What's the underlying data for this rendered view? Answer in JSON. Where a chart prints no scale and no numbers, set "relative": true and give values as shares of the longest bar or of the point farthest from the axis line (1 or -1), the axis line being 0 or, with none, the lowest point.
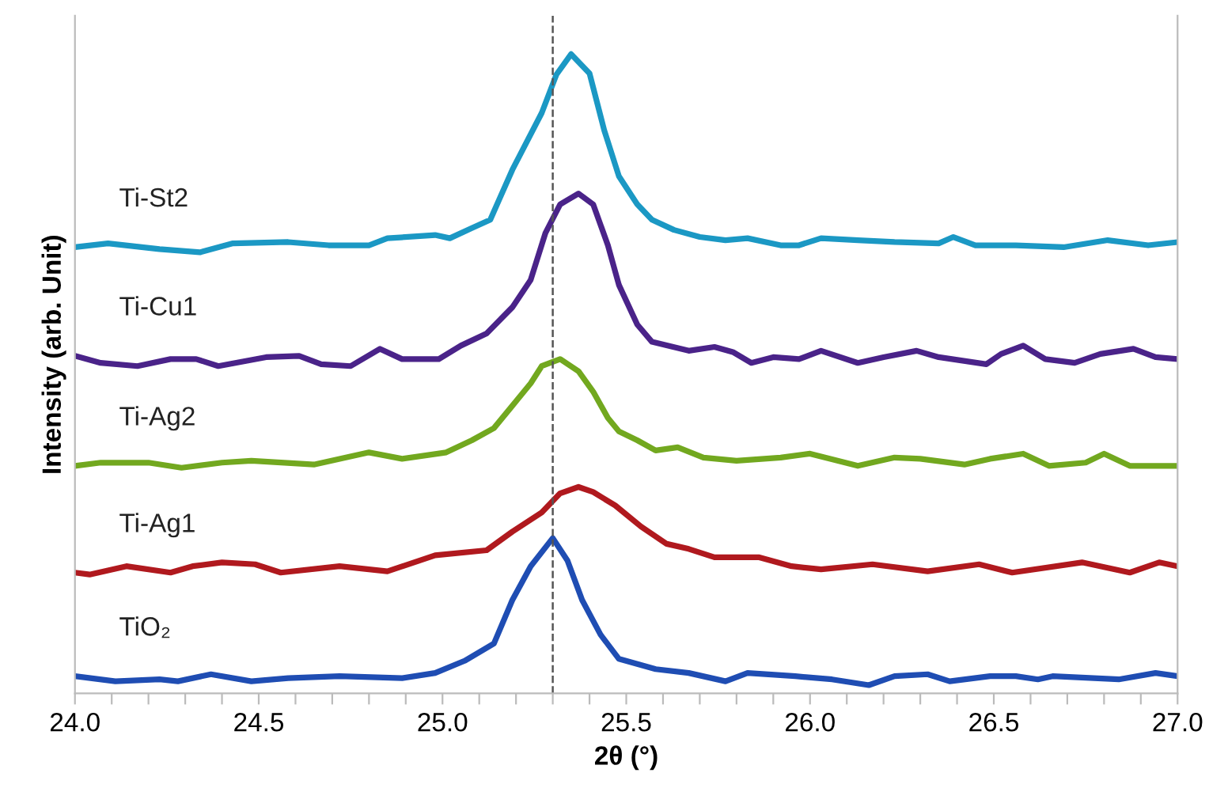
{
  "chart_data": {
    "type": "line",
    "relative": true,
    "xlabel": "2θ (°)",
    "ylabel": "Intensity (arb. Unit)",
    "xlim": [
      24.0,
      27.0
    ],
    "xticks": [
      {
        "value": 24.0,
        "label": "24.0"
      },
      {
        "value": 24.1,
        "label": null
      },
      {
        "value": 24.2,
        "label": null
      },
      {
        "value": 24.3,
        "label": null
      },
      {
        "value": 24.4,
        "label": null
      },
      {
        "value": 24.5,
        "label": "24.5"
      },
      {
        "value": 24.6,
        "label": null
      },
      {
        "value": 24.7,
        "label": null
      },
      {
        "value": 24.8,
        "label": null
      },
      {
        "value": 24.9,
        "label": null
      },
      {
        "value": 25.0,
        "label": "25.0"
      },
      {
        "value": 25.1,
        "label": null
      },
      {
        "value": 25.2,
        "label": null
      },
      {
        "value": 25.3,
        "label": null
      },
      {
        "value": 25.4,
        "label": null
      },
      {
        "value": 25.5,
        "label": "25.5"
      },
      {
        "value": 25.6,
        "label": null
      },
      {
        "value": 25.7,
        "label": null
      },
      {
        "value": 25.8,
        "label": null
      },
      {
        "value": 25.9,
        "label": null
      },
      {
        "value": 26.0,
        "label": "26.0"
      },
      {
        "value": 26.1,
        "label": null
      },
      {
        "value": 26.2,
        "label": null
      },
      {
        "value": 26.3,
        "label": null
      },
      {
        "value": 26.4,
        "label": null
      },
      {
        "value": 26.5,
        "label": "26.5"
      },
      {
        "value": 26.6,
        "label": null
      },
      {
        "value": 26.7,
        "label": null
      },
      {
        "value": 26.8,
        "label": null
      },
      {
        "value": 26.9,
        "label": null
      },
      {
        "value": 27.0,
        "label": "27.0"
      }
    ],
    "tick_labels": "x",
    "grid": false,
    "legend": false,
    "marker": "none",
    "line_style": "solid",
    "ref_lines": [
      {
        "axis": "x",
        "value": 25.3,
        "label": null,
        "color": "#555555",
        "line_style": "dashed"
      }
    ],
    "series": [
      {
        "name": "Ti-St2",
        "color": "#1b98c4",
        "x": [
          24.0,
          24.09,
          24.23,
          24.34,
          24.43,
          24.58,
          24.69,
          24.8,
          24.85,
          24.98,
          25.02,
          25.08,
          25.13,
          25.19,
          25.27,
          25.31,
          25.35,
          25.4,
          25.44,
          25.48,
          25.53,
          25.57,
          25.63,
          25.7,
          25.77,
          25.83,
          25.92,
          25.97,
          26.03,
          26.13,
          26.23,
          26.35,
          26.39,
          26.45,
          26.56,
          26.69,
          26.81,
          26.92,
          27.0
        ],
        "values": [
          0.698,
          0.704,
          0.695,
          0.69,
          0.704,
          0.706,
          0.701,
          0.701,
          0.712,
          0.717,
          0.712,
          0.728,
          0.741,
          0.819,
          0.908,
          0.968,
          1.0,
          0.97,
          0.881,
          0.809,
          0.765,
          0.741,
          0.725,
          0.714,
          0.709,
          0.712,
          0.701,
          0.701,
          0.712,
          0.709,
          0.706,
          0.704,
          0.714,
          0.701,
          0.701,
          0.698,
          0.709,
          0.701,
          0.706
        ]
      },
      {
        "name": "Ti-Cu1",
        "color": "#4a2389",
        "x": [
          24.0,
          24.07,
          24.17,
          24.26,
          24.33,
          24.39,
          24.52,
          24.61,
          24.67,
          24.75,
          24.83,
          24.89,
          24.99,
          25.05,
          25.12,
          25.19,
          25.24,
          25.28,
          25.32,
          25.37,
          25.41,
          25.45,
          25.48,
          25.53,
          25.57,
          25.67,
          25.74,
          25.79,
          25.84,
          25.9,
          25.97,
          26.03,
          26.13,
          26.2,
          26.29,
          26.35,
          26.48,
          26.52,
          26.58,
          26.64,
          26.72,
          26.79,
          26.88,
          26.94,
          27.0
        ],
        "values": [
          0.528,
          0.517,
          0.512,
          0.523,
          0.523,
          0.512,
          0.526,
          0.528,
          0.515,
          0.512,
          0.539,
          0.523,
          0.523,
          0.544,
          0.563,
          0.604,
          0.647,
          0.72,
          0.765,
          0.782,
          0.765,
          0.701,
          0.639,
          0.577,
          0.55,
          0.536,
          0.542,
          0.534,
          0.517,
          0.526,
          0.523,
          0.536,
          0.517,
          0.526,
          0.536,
          0.526,
          0.515,
          0.531,
          0.544,
          0.523,
          0.517,
          0.531,
          0.539,
          0.526,
          0.523
        ]
      },
      {
        "name": "Ti-Ag2",
        "color": "#72a81f",
        "x": [
          24.0,
          24.07,
          24.2,
          24.29,
          24.4,
          24.48,
          24.65,
          24.8,
          24.89,
          25.01,
          25.08,
          25.14,
          25.19,
          25.24,
          25.27,
          25.32,
          25.37,
          25.41,
          25.45,
          25.48,
          25.53,
          25.58,
          25.64,
          25.71,
          25.8,
          25.92,
          26.0,
          26.13,
          26.23,
          26.3,
          26.42,
          26.49,
          26.58,
          26.65,
          26.75,
          26.8,
          26.87,
          27.0
        ],
        "values": [
          0.356,
          0.361,
          0.361,
          0.353,
          0.361,
          0.364,
          0.358,
          0.377,
          0.367,
          0.377,
          0.396,
          0.415,
          0.45,
          0.485,
          0.512,
          0.523,
          0.504,
          0.472,
          0.431,
          0.41,
          0.396,
          0.38,
          0.385,
          0.369,
          0.364,
          0.369,
          0.375,
          0.356,
          0.369,
          0.367,
          0.358,
          0.367,
          0.375,
          0.356,
          0.361,
          0.375,
          0.356,
          0.356
        ]
      },
      {
        "name": "Ti-Ag1",
        "color": "#b0191e",
        "x": [
          24.0,
          24.04,
          24.14,
          24.26,
          24.32,
          24.4,
          24.49,
          24.56,
          24.72,
          24.85,
          24.98,
          25.12,
          25.19,
          25.27,
          25.32,
          25.37,
          25.41,
          25.47,
          25.54,
          25.61,
          25.67,
          25.74,
          25.86,
          25.95,
          26.03,
          26.17,
          26.32,
          26.46,
          26.55,
          26.74,
          26.87,
          26.95,
          27.0
        ],
        "values": [
          0.189,
          0.186,
          0.199,
          0.189,
          0.199,
          0.205,
          0.202,
          0.189,
          0.199,
          0.191,
          0.216,
          0.224,
          0.253,
          0.283,
          0.313,
          0.323,
          0.315,
          0.294,
          0.261,
          0.234,
          0.226,
          0.213,
          0.213,
          0.199,
          0.194,
          0.202,
          0.191,
          0.202,
          0.189,
          0.205,
          0.189,
          0.205,
          0.199
        ]
      },
      {
        "name": "TiO₂",
        "color": "#1f4db3",
        "x": [
          24.0,
          24.11,
          24.23,
          24.28,
          24.37,
          24.48,
          24.58,
          24.72,
          24.89,
          24.98,
          25.06,
          25.14,
          25.19,
          25.24,
          25.3,
          25.34,
          25.38,
          25.43,
          25.48,
          25.58,
          25.67,
          25.77,
          25.83,
          25.96,
          26.06,
          26.16,
          26.23,
          26.32,
          26.38,
          26.49,
          26.56,
          26.62,
          26.66,
          26.84,
          26.94,
          27.0
        ],
        "values": [
          0.027,
          0.019,
          0.022,
          0.019,
          0.03,
          0.019,
          0.024,
          0.027,
          0.024,
          0.032,
          0.051,
          0.078,
          0.146,
          0.199,
          0.243,
          0.208,
          0.146,
          0.092,
          0.054,
          0.038,
          0.032,
          0.019,
          0.032,
          0.027,
          0.022,
          0.013,
          0.027,
          0.03,
          0.019,
          0.027,
          0.027,
          0.022,
          0.027,
          0.022,
          0.032,
          0.027
        ]
      }
    ]
  }
}
